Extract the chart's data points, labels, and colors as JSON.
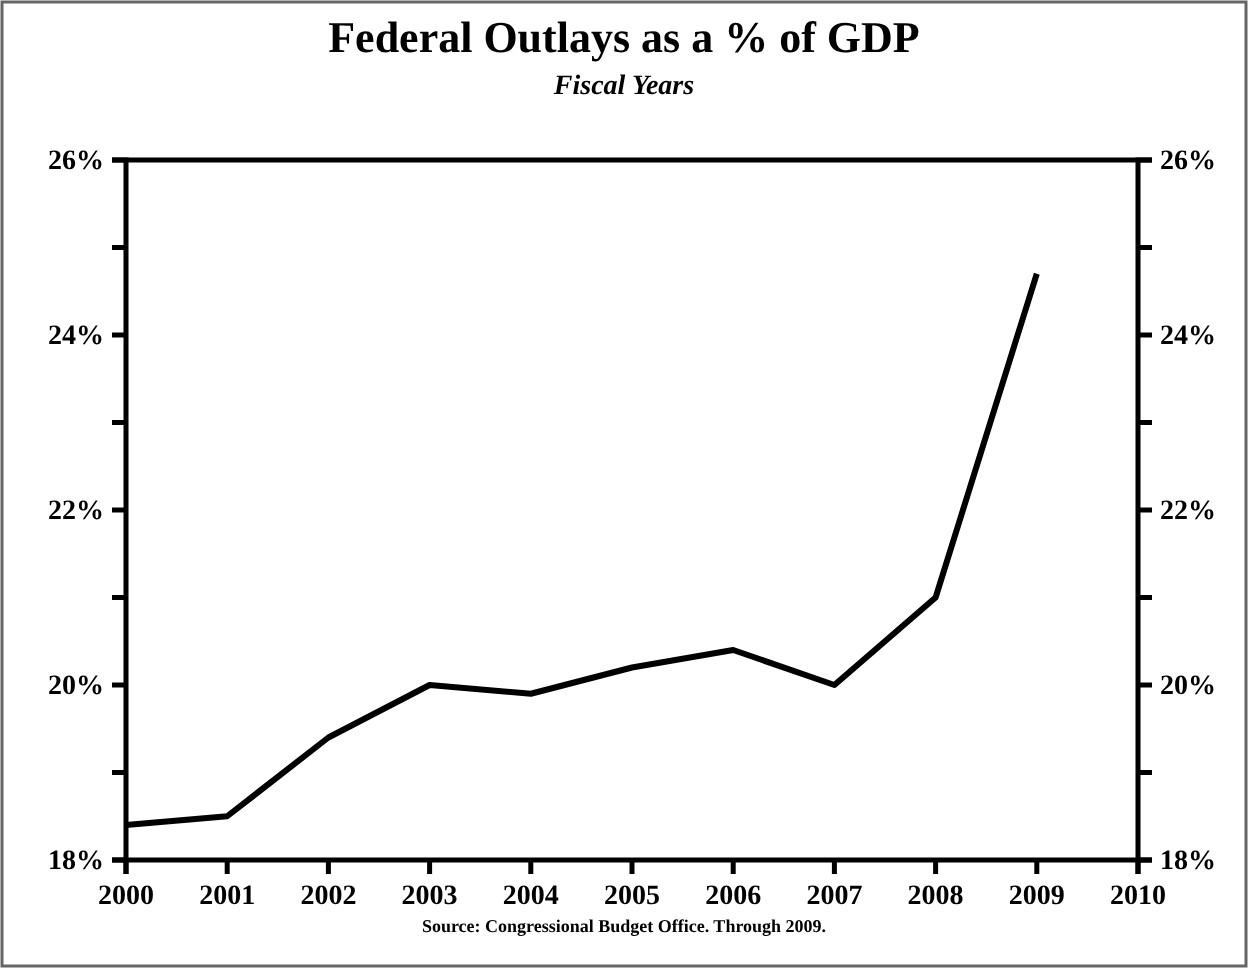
{
  "chart_data": {
    "type": "line",
    "title": "Federal Outlays as a % of GDP",
    "subtitle": "Fiscal Years",
    "annotations": [
      "Source: Congressional Budget Office. Through 2009."
    ],
    "x": [
      2000,
      2001,
      2002,
      2003,
      2004,
      2005,
      2006,
      2007,
      2008,
      2009
    ],
    "series": [
      {
        "color": "#000000",
        "values": [
          18.4,
          18.5,
          19.4,
          20.0,
          19.9,
          20.2,
          20.4,
          20.0,
          21.0,
          24.7
        ]
      }
    ],
    "xlim": [
      2000,
      2010
    ],
    "xticks": [
      2000,
      2001,
      2002,
      2003,
      2004,
      2005,
      2006,
      2007,
      2008,
      2009,
      2010
    ],
    "ylim": [
      18,
      26
    ],
    "yticks": [
      {
        "value": 18,
        "label": "18%"
      },
      {
        "value": 19,
        "label": null
      },
      {
        "value": 20,
        "label": "20%"
      },
      {
        "value": 21,
        "label": null
      },
      {
        "value": 22,
        "label": "22%"
      },
      {
        "value": 23,
        "label": null
      },
      {
        "value": 24,
        "label": "24%"
      },
      {
        "value": 25,
        "label": null
      },
      {
        "value": 26,
        "label": "26%"
      }
    ],
    "y2lim": [
      18,
      26
    ],
    "y2ticks": [
      {
        "value": 18,
        "label": "18%"
      },
      {
        "value": 19,
        "label": null
      },
      {
        "value": 20,
        "label": "20%"
      },
      {
        "value": 21,
        "label": null
      },
      {
        "value": 22,
        "label": "22%"
      },
      {
        "value": 23,
        "label": null
      },
      {
        "value": 24,
        "label": "24%"
      },
      {
        "value": 25,
        "label": null
      },
      {
        "value": 26,
        "label": "26%"
      }
    ],
    "grid": false,
    "marker": "none",
    "line_style": "solid"
  }
}
